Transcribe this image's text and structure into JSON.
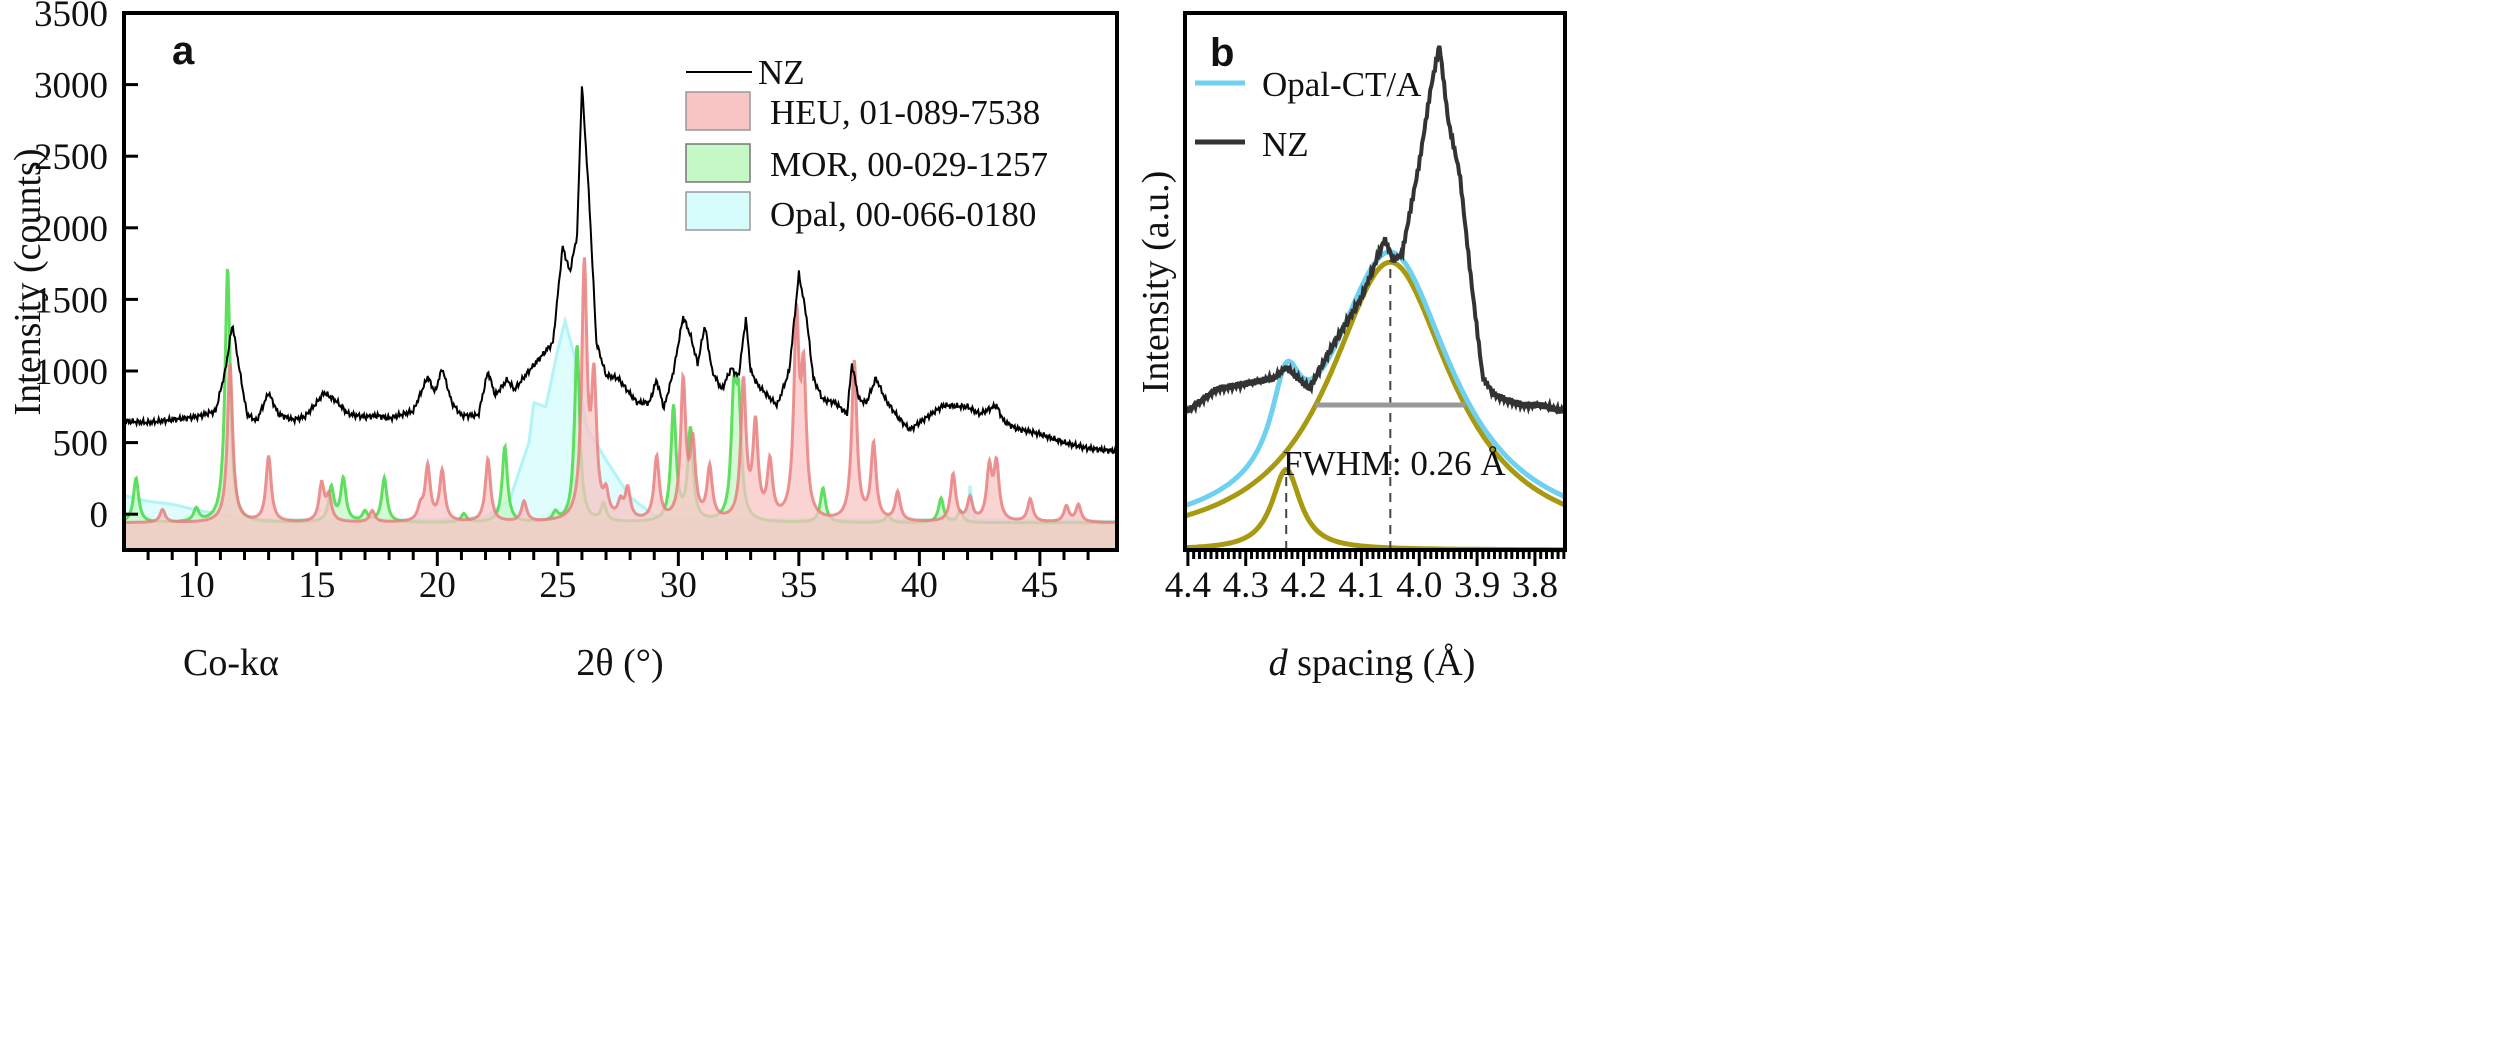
{
  "chart_data": [
    {
      "panel": "a",
      "type": "line",
      "xlabel": "2θ (°)",
      "xlabel_note": "Co-kα",
      "ylabel": "Intensity (counts)",
      "xlim": [
        7,
        48.2
      ],
      "ylim": [
        -250,
        3500
      ],
      "xticks": [
        10,
        15,
        20,
        25,
        30,
        35,
        40,
        45
      ],
      "yticks": [
        0,
        500,
        1000,
        1500,
        2000,
        2500,
        3000,
        3500
      ],
      "grid": false,
      "legend_position": "top-right",
      "series": [
        {
          "name": "NZ",
          "style": "line",
          "color": "#000000",
          "x": [
            7,
            8,
            9,
            10,
            10.8,
            11.2,
            11.5,
            11.8,
            12.1,
            12.5,
            13,
            13.4,
            14,
            14.5,
            15,
            15.3,
            15.8,
            16.3,
            17,
            17.5,
            18,
            19,
            19.6,
            19.9,
            20.2,
            20.6,
            21,
            21.7,
            22.1,
            22.4,
            22.9,
            23.2,
            23.8,
            24.3,
            24.8,
            25.2,
            25.5,
            25.8,
            26,
            26.3,
            26.6,
            27,
            27.5,
            28,
            28.3,
            28.8,
            29.1,
            29.4,
            29.8,
            30.2,
            30.5,
            30.8,
            31.1,
            31.4,
            31.8,
            32.2,
            32.5,
            32.8,
            33,
            33.3,
            33.7,
            34.1,
            34.6,
            35,
            35.3,
            35.6,
            36,
            36.5,
            37,
            37.2,
            37.5,
            37.8,
            38.2,
            38.6,
            39.1,
            39.6,
            40,
            40.5,
            41,
            42,
            42.5,
            43.2,
            43.5,
            44,
            45,
            46,
            47,
            48.2
          ],
          "y": [
            650,
            640,
            660,
            680,
            720,
            1000,
            1330,
            1000,
            700,
            650,
            850,
            700,
            660,
            680,
            780,
            850,
            790,
            700,
            680,
            690,
            670,
            720,
            960,
            850,
            1020,
            780,
            690,
            690,
            1000,
            830,
            940,
            870,
            1000,
            1100,
            1200,
            1870,
            1690,
            1950,
            3000,
            2200,
            1200,
            970,
            950,
            840,
            780,
            780,
            940,
            740,
            1000,
            1380,
            1250,
            1050,
            1320,
            1000,
            870,
            1020,
            960,
            1370,
            1000,
            900,
            830,
            760,
            1000,
            1680,
            1400,
            950,
            800,
            780,
            700,
            1050,
            800,
            780,
            950,
            800,
            680,
            590,
            640,
            700,
            760,
            750,
            700,
            760,
            650,
            600,
            560,
            500,
            460,
            440
          ]
        },
        {
          "name": "HEU, 01-089-7538",
          "style": "filled",
          "color": "#e88080",
          "fill": "#f8c4c4",
          "peaks_2theta_intensity": [
            [
              8.6,
              30
            ],
            [
              11.4,
              1050
            ],
            [
              13,
              400
            ],
            [
              15.2,
              200
            ],
            [
              15.5,
              110
            ],
            [
              17.3,
              20
            ],
            [
              19.3,
              30
            ],
            [
              19.6,
              320
            ],
            [
              20.2,
              290
            ],
            [
              22.1,
              380
            ],
            [
              23.6,
              80
            ],
            [
              26.1,
              1700
            ],
            [
              26.5,
              870
            ],
            [
              27,
              100
            ],
            [
              27.6,
              50
            ],
            [
              27.9,
              150
            ],
            [
              29.1,
              380
            ],
            [
              30.2,
              900
            ],
            [
              30.6,
              450
            ],
            [
              31.3,
              300
            ],
            [
              32.7,
              900
            ],
            [
              33.2,
              590
            ],
            [
              33.8,
              330
            ],
            [
              34.9,
              1300
            ],
            [
              35.2,
              900
            ],
            [
              37.3,
              1050
            ],
            [
              38.1,
              470
            ],
            [
              39.1,
              140
            ],
            [
              41.4,
              270
            ],
            [
              42.1,
              100
            ],
            [
              42.9,
              300
            ],
            [
              43.2,
              330
            ],
            [
              44.6,
              100
            ],
            [
              46.1,
              50
            ],
            [
              46.6,
              60
            ]
          ]
        },
        {
          "name": "MOR, 00-029-1257",
          "style": "filled",
          "color": "#48d848",
          "fill": "#c6f8c6",
          "peaks_2theta_intensity": [
            [
              7.5,
              250
            ],
            [
              10,
              30
            ],
            [
              11.3,
              1720
            ],
            [
              15.6,
              180
            ],
            [
              16.1,
              240
            ],
            [
              17,
              10
            ],
            [
              17.8,
              250
            ],
            [
              21.1,
              0
            ],
            [
              22.8,
              470
            ],
            [
              24.9,
              0
            ],
            [
              25.8,
              1180
            ],
            [
              26.9,
              60
            ],
            [
              29.8,
              740
            ],
            [
              30.5,
              580
            ],
            [
              32.3,
              730
            ],
            [
              32.5,
              700
            ],
            [
              36,
              180
            ],
            [
              38.7,
              -10
            ],
            [
              40.9,
              110
            ],
            [
              41.7,
              20
            ]
          ]
        },
        {
          "name": "Opal, 00-066-0180",
          "style": "filled",
          "color": "#a8f2f4",
          "fill": "#d6fcfc",
          "x": [
            7,
            8,
            9,
            10,
            11,
            12,
            20,
            22,
            23,
            23.8,
            24,
            24.5,
            25,
            25.3,
            25.7,
            26.2,
            27,
            28,
            29,
            30,
            42,
            42.1,
            42.3,
            48.2
          ],
          "y": [
            130,
            90,
            70,
            30,
            0,
            -40,
            -40,
            -20,
            100,
            500,
            780,
            750,
            1150,
            1350,
            1100,
            600,
            380,
            120,
            -10,
            -40,
            -40,
            200,
            -40,
            -50
          ]
        }
      ]
    },
    {
      "panel": "b",
      "type": "line",
      "xlabel_italic": "d",
      "xlabel": " spacing (Å)",
      "ylabel": "Intensity (a.u.)",
      "xlim": [
        4.405,
        3.748
      ],
      "x_reversed": true,
      "ylim": [
        0,
        1
      ],
      "xticks": [
        "4.4",
        "4.3",
        "4.2",
        "4.1",
        "4.0",
        "3.9",
        "3.8"
      ],
      "grid": false,
      "legend_position": "top-left",
      "annotation": "FWHM: 0.26 Å",
      "fwhm_range": [
        4.18,
        3.92
      ],
      "fwhm_level": 0.27,
      "dashed_markers": [
        4.23,
        4.05
      ],
      "series": [
        {
          "name": "Opal-CT/A",
          "style": "line",
          "color": "#70d0f0",
          "sum_of_components": true
        },
        {
          "name": "NZ",
          "style": "line",
          "color": "#333333",
          "x": [
            4.405,
            4.4,
            4.35,
            4.3,
            4.25,
            4.23,
            4.19,
            4.15,
            4.1,
            4.07,
            4.06,
            4.045,
            4.03,
            4.0,
            3.98,
            3.965,
            3.95,
            3.93,
            3.91,
            3.89,
            3.87,
            3.85,
            3.82,
            3.79,
            3.76,
            3.748
          ],
          "y": [
            0.26,
            0.26,
            0.3,
            0.31,
            0.32,
            0.34,
            0.3,
            0.38,
            0.47,
            0.55,
            0.58,
            0.54,
            0.55,
            0.72,
            0.86,
            0.94,
            0.8,
            0.7,
            0.5,
            0.32,
            0.29,
            0.28,
            0.27,
            0.27,
            0.26,
            0.26
          ]
        }
      ],
      "components": [
        {
          "color": "#a89a10",
          "center": 4.05,
          "fwhm": 0.26,
          "height": 0.536
        },
        {
          "color": "#a89a10",
          "center": 4.23,
          "fwhm": 0.06,
          "height": 0.15
        }
      ]
    }
  ],
  "labels": {
    "panel_a": "a",
    "panel_b": "b"
  }
}
